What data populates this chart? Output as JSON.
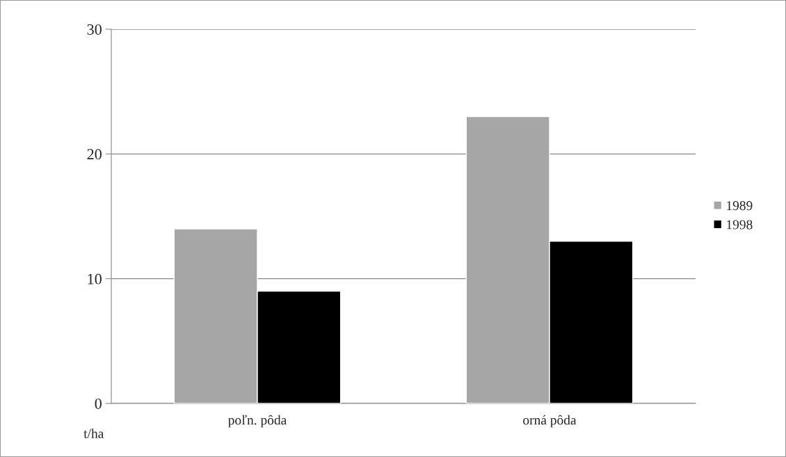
{
  "chart_data": {
    "type": "bar",
    "ylabel": "t/ha",
    "categories": [
      "poľn. pôda",
      "orná pôda"
    ],
    "series": [
      {
        "name": "1989",
        "color": "#a6a6a6",
        "values": [
          14,
          23
        ]
      },
      {
        "name": "1998",
        "color": "#000000",
        "values": [
          9,
          13
        ]
      }
    ],
    "ylim": [
      0,
      30
    ],
    "yticks": [
      0,
      10,
      20,
      30
    ],
    "grid": "y",
    "legend": "right"
  }
}
